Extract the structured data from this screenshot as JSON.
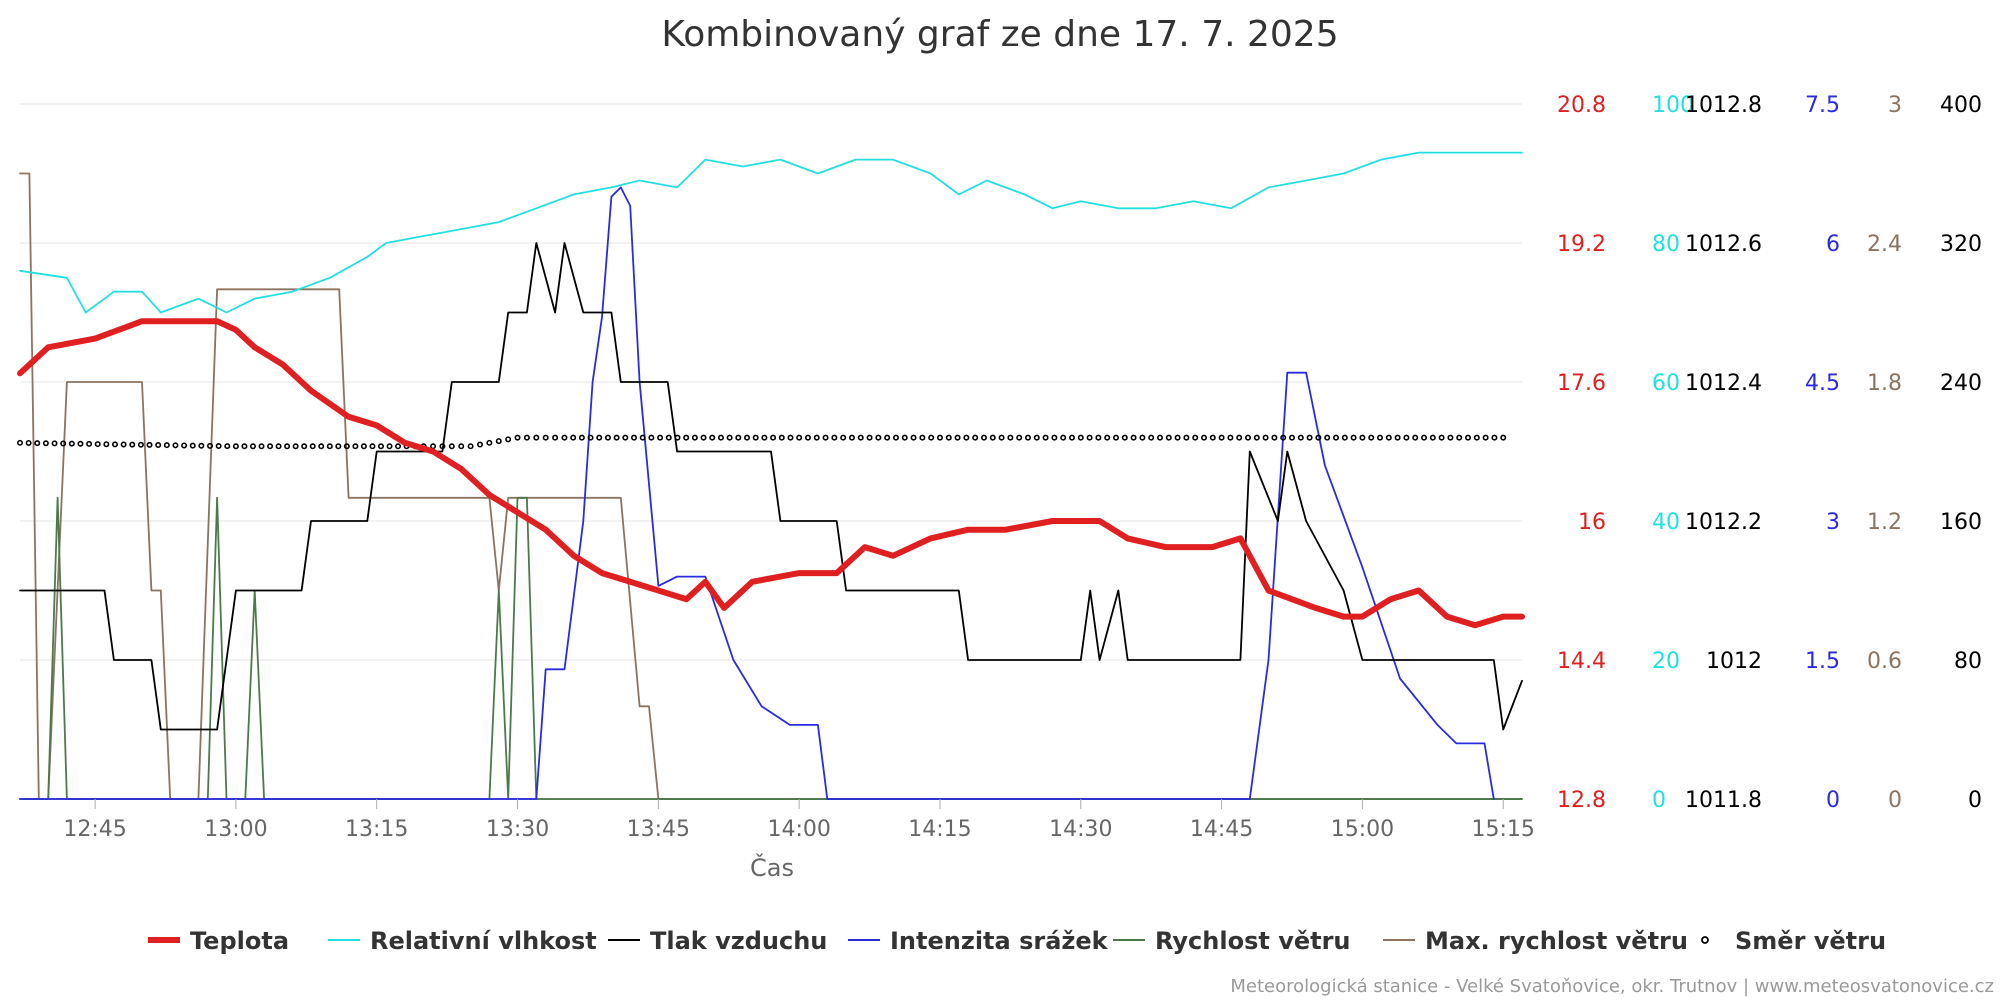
{
  "chart_data": {
    "type": "line",
    "title": "Kombinovaný graf ze dne 17. 7. 2025",
    "xlabel": "Čas",
    "x_ticks": [
      "12:45",
      "13:00",
      "13:15",
      "13:30",
      "13:45",
      "14:00",
      "14:15",
      "14:30",
      "14:45",
      "15:00",
      "15:15"
    ],
    "x_range": [
      "12:37",
      "15:17"
    ],
    "grid": true,
    "legend_position": "bottom",
    "y_axes": [
      {
        "id": "temp",
        "ticks": [
          "12.8",
          "14.4",
          "16",
          "17.6",
          "19.2",
          "20.8"
        ],
        "range": [
          12.8,
          20.8
        ],
        "color": "#e02020"
      },
      {
        "id": "hum",
        "ticks": [
          "0",
          "20",
          "40",
          "60",
          "80",
          "100"
        ],
        "range": [
          0,
          100
        ],
        "color": "#22e0e0"
      },
      {
        "id": "press",
        "ticks": [
          "1011.8",
          "1012",
          "1012.2",
          "1012.4",
          "1012.6",
          "1012.8"
        ],
        "range": [
          1011.8,
          1012.8
        ],
        "color": "#000000"
      },
      {
        "id": "rain",
        "ticks": [
          "0",
          "1.5",
          "3",
          "4.5",
          "6",
          "7.5"
        ],
        "range": [
          0,
          7.5
        ],
        "color": "#2a2ae0"
      },
      {
        "id": "wmax",
        "ticks": [
          "0",
          "0.6",
          "1.2",
          "1.8",
          "2.4",
          "3"
        ],
        "range": [
          0,
          3
        ],
        "color": "#8b7360"
      },
      {
        "id": "dir",
        "ticks": [
          "0",
          "80",
          "160",
          "240",
          "320",
          "400"
        ],
        "range": [
          0,
          400
        ],
        "color": "#000000"
      }
    ],
    "series": [
      {
        "name": "Teplota",
        "axis": "temp",
        "color": "#e02020",
        "style": "thick",
        "points": [
          [
            "12:37",
            17.7
          ],
          [
            "12:40",
            18.0
          ],
          [
            "12:45",
            18.1
          ],
          [
            "12:50",
            18.3
          ],
          [
            "12:54",
            18.3
          ],
          [
            "12:58",
            18.3
          ],
          [
            "13:00",
            18.2
          ],
          [
            "13:02",
            18.0
          ],
          [
            "13:05",
            17.8
          ],
          [
            "13:08",
            17.5
          ],
          [
            "13:12",
            17.2
          ],
          [
            "13:15",
            17.1
          ],
          [
            "13:18",
            16.9
          ],
          [
            "13:21",
            16.8
          ],
          [
            "13:24",
            16.6
          ],
          [
            "13:27",
            16.3
          ],
          [
            "13:30",
            16.1
          ],
          [
            "13:33",
            15.9
          ],
          [
            "13:36",
            15.6
          ],
          [
            "13:39",
            15.4
          ],
          [
            "13:42",
            15.3
          ],
          [
            "13:45",
            15.2
          ],
          [
            "13:48",
            15.1
          ],
          [
            "13:50",
            15.3
          ],
          [
            "13:52",
            15.0
          ],
          [
            "13:55",
            15.3
          ],
          [
            "14:00",
            15.4
          ],
          [
            "14:04",
            15.4
          ],
          [
            "14:07",
            15.7
          ],
          [
            "14:10",
            15.6
          ],
          [
            "14:14",
            15.8
          ],
          [
            "14:18",
            15.9
          ],
          [
            "14:22",
            15.9
          ],
          [
            "14:27",
            16.0
          ],
          [
            "14:32",
            16.0
          ],
          [
            "14:35",
            15.8
          ],
          [
            "14:39",
            15.7
          ],
          [
            "14:44",
            15.7
          ],
          [
            "14:47",
            15.8
          ],
          [
            "14:50",
            15.2
          ],
          [
            "14:55",
            15.0
          ],
          [
            "14:58",
            14.9
          ],
          [
            "15:00",
            14.9
          ],
          [
            "15:03",
            15.1
          ],
          [
            "15:06",
            15.2
          ],
          [
            "15:09",
            14.9
          ],
          [
            "15:12",
            14.8
          ],
          [
            "15:15",
            14.9
          ],
          [
            "15:17",
            14.9
          ]
        ]
      },
      {
        "name": "Relativní vlhkost",
        "axis": "hum",
        "color": "#22e0e0",
        "style": "thin",
        "points": [
          [
            "12:37",
            76
          ],
          [
            "12:42",
            75
          ],
          [
            "12:44",
            70
          ],
          [
            "12:47",
            73
          ],
          [
            "12:50",
            73
          ],
          [
            "12:52",
            70
          ],
          [
            "12:56",
            72
          ],
          [
            "12:59",
            70
          ],
          [
            "13:02",
            72
          ],
          [
            "13:06",
            73
          ],
          [
            "13:10",
            75
          ],
          [
            "13:14",
            78
          ],
          [
            "13:16",
            80
          ],
          [
            "13:20",
            81
          ],
          [
            "13:24",
            82
          ],
          [
            "13:28",
            83
          ],
          [
            "13:32",
            85
          ],
          [
            "13:36",
            87
          ],
          [
            "13:40",
            88
          ],
          [
            "13:43",
            89
          ],
          [
            "13:47",
            88
          ],
          [
            "13:50",
            92
          ],
          [
            "13:54",
            91
          ],
          [
            "13:58",
            92
          ],
          [
            "14:02",
            90
          ],
          [
            "14:06",
            92
          ],
          [
            "14:10",
            92
          ],
          [
            "14:14",
            90
          ],
          [
            "14:17",
            87
          ],
          [
            "14:20",
            89
          ],
          [
            "14:24",
            87
          ],
          [
            "14:27",
            85
          ],
          [
            "14:30",
            86
          ],
          [
            "14:34",
            85
          ],
          [
            "14:38",
            85
          ],
          [
            "14:42",
            86
          ],
          [
            "14:46",
            85
          ],
          [
            "14:50",
            88
          ],
          [
            "14:54",
            89
          ],
          [
            "14:58",
            90
          ],
          [
            "15:02",
            92
          ],
          [
            "15:06",
            93
          ],
          [
            "15:10",
            93
          ],
          [
            "15:14",
            93
          ],
          [
            "15:17",
            93
          ]
        ]
      },
      {
        "name": "Tlak vzduchu",
        "axis": "press",
        "color": "#000000",
        "style": "step",
        "points": [
          [
            "12:37",
            1012.1
          ],
          [
            "12:46",
            1012.1
          ],
          [
            "12:47",
            1012.0
          ],
          [
            "12:51",
            1012.0
          ],
          [
            "12:52",
            1011.9
          ],
          [
            "12:58",
            1011.9
          ],
          [
            "13:00",
            1012.1
          ],
          [
            "13:07",
            1012.1
          ],
          [
            "13:08",
            1012.2
          ],
          [
            "13:14",
            1012.2
          ],
          [
            "13:15",
            1012.3
          ],
          [
            "13:22",
            1012.3
          ],
          [
            "13:23",
            1012.4
          ],
          [
            "13:28",
            1012.4
          ],
          [
            "13:29",
            1012.5
          ],
          [
            "13:31",
            1012.5
          ],
          [
            "13:32",
            1012.6
          ],
          [
            "13:34",
            1012.5
          ],
          [
            "13:35",
            1012.6
          ],
          [
            "13:37",
            1012.5
          ],
          [
            "13:40",
            1012.5
          ],
          [
            "13:41",
            1012.4
          ],
          [
            "13:46",
            1012.4
          ],
          [
            "13:47",
            1012.3
          ],
          [
            "13:57",
            1012.3
          ],
          [
            "13:58",
            1012.2
          ],
          [
            "14:04",
            1012.2
          ],
          [
            "14:05",
            1012.1
          ],
          [
            "14:17",
            1012.1
          ],
          [
            "14:18",
            1012.0
          ],
          [
            "14:30",
            1012.0
          ],
          [
            "14:31",
            1012.1
          ],
          [
            "14:32",
            1012.0
          ],
          [
            "14:34",
            1012.1
          ],
          [
            "14:35",
            1012.0
          ],
          [
            "14:47",
            1012.0
          ],
          [
            "14:48",
            1012.3
          ],
          [
            "14:51",
            1012.2
          ],
          [
            "14:52",
            1012.3
          ],
          [
            "14:54",
            1012.2
          ],
          [
            "14:58",
            1012.1
          ],
          [
            "15:00",
            1012.0
          ],
          [
            "15:14",
            1012.0
          ],
          [
            "15:15",
            1011.9
          ],
          [
            "15:17",
            1011.97
          ]
        ]
      },
      {
        "name": "Intenzita srážek",
        "axis": "rain",
        "color": "#2a2ae0",
        "style": "thin",
        "points": [
          [
            "12:37",
            0
          ],
          [
            "13:32",
            0
          ],
          [
            "13:33",
            1.4
          ],
          [
            "13:35",
            1.4
          ],
          [
            "13:37",
            3.0
          ],
          [
            "13:38",
            4.5
          ],
          [
            "13:39",
            5.2
          ],
          [
            "13:40",
            6.5
          ],
          [
            "13:41",
            6.6
          ],
          [
            "13:42",
            6.4
          ],
          [
            "13:43",
            4.5
          ],
          [
            "13:45",
            2.3
          ],
          [
            "13:47",
            2.4
          ],
          [
            "13:50",
            2.4
          ],
          [
            "13:53",
            1.5
          ],
          [
            "13:56",
            1.0
          ],
          [
            "13:59",
            0.8
          ],
          [
            "14:02",
            0.8
          ],
          [
            "14:03",
            0
          ],
          [
            "14:48",
            0
          ],
          [
            "14:50",
            1.5
          ],
          [
            "14:52",
            4.6
          ],
          [
            "14:54",
            4.6
          ],
          [
            "14:56",
            3.6
          ],
          [
            "15:00",
            2.5
          ],
          [
            "15:04",
            1.3
          ],
          [
            "15:08",
            0.8
          ],
          [
            "15:10",
            0.6
          ],
          [
            "15:13",
            0.6
          ],
          [
            "15:14",
            0
          ]
        ]
      },
      {
        "name": "Rychlost větru",
        "axis": "wmax",
        "color": "#4a7a4a",
        "style": "thin",
        "points": [
          [
            "12:37",
            0
          ],
          [
            "12:40",
            0
          ],
          [
            "12:41",
            1.3
          ],
          [
            "12:42",
            0
          ],
          [
            "12:57",
            0
          ],
          [
            "12:58",
            1.3
          ],
          [
            "12:59",
            0
          ],
          [
            "13:01",
            0
          ],
          [
            "13:02",
            0.9
          ],
          [
            "13:03",
            0
          ],
          [
            "13:27",
            0
          ],
          [
            "13:28",
            0.9
          ],
          [
            "13:29",
            0
          ],
          [
            "13:30",
            1.3
          ],
          [
            "13:31",
            1.3
          ],
          [
            "13:32",
            0
          ],
          [
            "15:17",
            0
          ]
        ]
      },
      {
        "name": "Max. rychlost větru",
        "axis": "wmax",
        "color": "#8b7360",
        "style": "thin",
        "points": [
          [
            "12:37",
            2.7
          ],
          [
            "12:38",
            2.7
          ],
          [
            "12:39",
            0
          ],
          [
            "12:40",
            0
          ],
          [
            "12:42",
            1.8
          ],
          [
            "12:50",
            1.8
          ],
          [
            "12:51",
            0.9
          ],
          [
            "12:52",
            0.9
          ],
          [
            "12:53",
            0
          ],
          [
            "12:56",
            0
          ],
          [
            "12:58",
            2.2
          ],
          [
            "13:00",
            2.2
          ],
          [
            "13:11",
            2.2
          ],
          [
            "13:12",
            1.3
          ],
          [
            "13:27",
            1.3
          ],
          [
            "13:28",
            0.9
          ],
          [
            "13:29",
            1.3
          ],
          [
            "13:40",
            1.3
          ],
          [
            "13:41",
            1.3
          ],
          [
            "13:43",
            0.4
          ],
          [
            "13:44",
            0.4
          ],
          [
            "13:45",
            0
          ],
          [
            "15:17",
            0
          ]
        ]
      },
      {
        "name": "Směr větru",
        "axis": "dir",
        "color": "#000000",
        "style": "dots",
        "points": [
          [
            "12:37",
            205
          ],
          [
            "13:00",
            203
          ],
          [
            "13:10",
            203
          ],
          [
            "13:20",
            203
          ],
          [
            "13:25",
            203
          ],
          [
            "13:30",
            208
          ],
          [
            "13:35",
            208
          ],
          [
            "14:00",
            208
          ],
          [
            "14:30",
            208
          ],
          [
            "15:00",
            208
          ],
          [
            "15:15",
            208
          ]
        ]
      }
    ],
    "credits": "Meteorologická stanice - Velké Svatoňovice, okr. Trutnov | www.meteosvatonovice.cz"
  }
}
